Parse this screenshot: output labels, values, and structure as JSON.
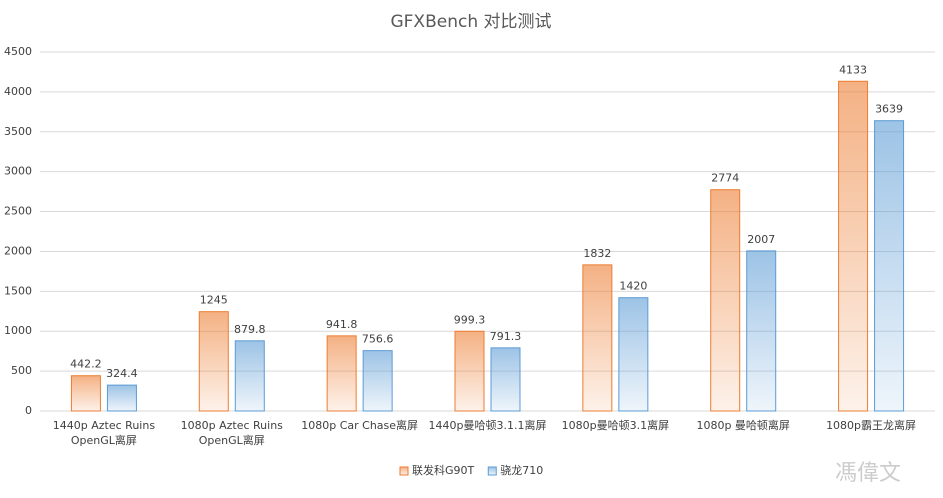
{
  "chart_data": {
    "type": "bar",
    "title": "GFXBench 对比测试",
    "categories": [
      "1440p Aztec Ruins OpenGL离屏",
      "1080p Aztec Ruins OpenGL离屏",
      "1080p Car Chase离屏",
      "1440p曼哈顿3.1.1离屏",
      "1080p曼哈顿3.1离屏",
      "1080p 曼哈顿离屏",
      "1080p霸王龙离屏"
    ],
    "series": [
      {
        "name": "联发科G90T",
        "color": "#ed7d31",
        "values": [
          442.2,
          1245,
          941.8,
          999.3,
          1832,
          2774,
          4133
        ]
      },
      {
        "name": "骁龙710",
        "color": "#5b9bd5",
        "values": [
          324.4,
          879.8,
          756.6,
          791.3,
          1420,
          2007,
          3639
        ]
      }
    ],
    "ylim": [
      0,
      4500
    ],
    "yticks": [
      0,
      500,
      1000,
      1500,
      2000,
      2500,
      3000,
      3500,
      4000,
      4500
    ],
    "grid": true,
    "legend": "bottom",
    "watermark": "馮偉文"
  }
}
